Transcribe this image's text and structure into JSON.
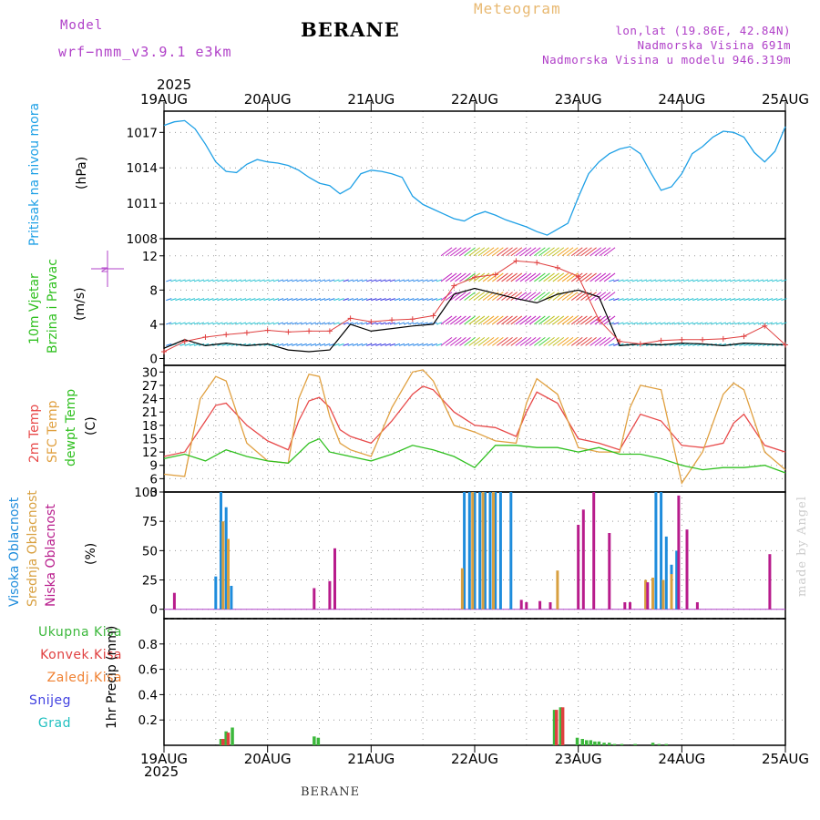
{
  "header": {
    "title": "BERANE",
    "model_label": "Model",
    "model_name": "wrf−nmm_v3.9.1  e3km",
    "meteogram_label": "Meteogram",
    "lonlat": "lon,lat (19.86E, 42.84N)",
    "elevation": "Nadmorska Visina 691m",
    "model_elevation": "Nadmorska Visina u modelu 946.319m",
    "year_top": "2025",
    "year_bottom": "2025",
    "footer_station": "BERANE",
    "credit": "made by Angel"
  },
  "colors": {
    "pressure": "#1ea0e6",
    "wind_mean": "#000000",
    "gust": "#e04040",
    "temp2m": "#e84a4a",
    "sfc_temp": "#e0a040",
    "dewpoint": "#30c020",
    "cloud_high": "#1e8cdc",
    "cloud_mid": "#d8a040",
    "cloud_low": "#b81c8c",
    "precip_total": "#3cb83c",
    "precip_conv": "#e04040",
    "precip_freezing": "#f08030",
    "snow": "#4040e0",
    "graupel": "#20c0c0"
  },
  "chart_data": {
    "type": "meteogram",
    "x_axis": {
      "labels": [
        "19AUG",
        "20AUG",
        "21AUG",
        "22AUG",
        "23AUG",
        "24AUG",
        "25AUG"
      ],
      "range_days": [
        0,
        6
      ]
    },
    "panels": [
      {
        "id": "pressure",
        "type": "line",
        "label": "Pritisak na nivou mora",
        "unit": "(hPa)",
        "ylim": [
          1008,
          1018.8
        ],
        "yticks": [
          1008,
          1011,
          1014,
          1017
        ],
        "series": [
          {
            "name": "Pritisak na nivou mora",
            "color": "#1ea0e6",
            "x": [
              0,
              0.1,
              0.2,
              0.3,
              0.4,
              0.5,
              0.6,
              0.7,
              0.8,
              0.9,
              1,
              1.1,
              1.2,
              1.3,
              1.4,
              1.5,
              1.6,
              1.7,
              1.8,
              1.9,
              2,
              2.1,
              2.2,
              2.3,
              2.4,
              2.5,
              2.6,
              2.7,
              2.8,
              2.9,
              3,
              3.1,
              3.2,
              3.3,
              3.4,
              3.5,
              3.6,
              3.7,
              3.8,
              3.9,
              4,
              4.1,
              4.2,
              4.3,
              4.4,
              4.5,
              4.6,
              4.7,
              4.8,
              4.9,
              5,
              5.1,
              5.2,
              5.3,
              5.4,
              5.5,
              5.6,
              5.7,
              5.8,
              5.9,
              6
            ],
            "values": [
              1017.6,
              1017.9,
              1018,
              1017.3,
              1016,
              1014.5,
              1013.7,
              1013.6,
              1014.3,
              1014.7,
              1014.5,
              1014.4,
              1014.2,
              1013.8,
              1013.2,
              1012.7,
              1012.5,
              1011.8,
              1012.3,
              1013.5,
              1013.8,
              1013.7,
              1013.5,
              1013.2,
              1011.6,
              1010.9,
              1010.5,
              1010.1,
              1009.7,
              1009.5,
              1010,
              1010.3,
              1010,
              1009.6,
              1009.3,
              1009,
              1008.6,
              1008.3,
              1008.8,
              1009.3,
              1011.5,
              1013.5,
              1014.5,
              1015.2,
              1015.6,
              1015.8,
              1015.2,
              1013.6,
              1012.1,
              1012.4,
              1013.5,
              1015.2,
              1015.8,
              1016.6,
              1017.1,
              1017,
              1016.6,
              1015.3,
              1014.5,
              1015.4,
              1017.5
            ]
          }
        ]
      },
      {
        "id": "wind",
        "type": "line+barbs",
        "label": "10m Vjetar",
        "label2": "Brzina i Pravac",
        "unit": "(m/s)",
        "compass": "N",
        "ylim": [
          -0.8,
          14
        ],
        "yticks": [
          0,
          4,
          8,
          12
        ],
        "barb_levels_m_s": [
          1.5,
          4,
          6.8,
          9,
          12
        ],
        "series": [
          {
            "name": "Brzina vjetra",
            "color": "#000000",
            "x": [
              0,
              0.2,
              0.4,
              0.6,
              0.8,
              1,
              1.2,
              1.4,
              1.6,
              1.8,
              2,
              2.2,
              2.4,
              2.6,
              2.8,
              3,
              3.2,
              3.4,
              3.6,
              3.8,
              4,
              4.2,
              4.4,
              4.6,
              4.8,
              5,
              5.2,
              5.4,
              5.6,
              5.8,
              6
            ],
            "values": [
              1.2,
              2.2,
              1.5,
              1.8,
              1.5,
              1.7,
              1,
              0.8,
              1,
              4,
              3.2,
              3.5,
              3.8,
              4,
              7.5,
              8.2,
              7.6,
              7,
              6.5,
              7.5,
              8,
              7.2,
              1.5,
              1.7,
              1.6,
              1.8,
              1.7,
              1.5,
              1.8,
              1.7,
              1.6
            ]
          },
          {
            "name": "Udari vjetra",
            "color": "#e04040",
            "x": [
              0,
              0.2,
              0.4,
              0.6,
              0.8,
              1,
              1.2,
              1.4,
              1.6,
              1.8,
              2,
              2.2,
              2.4,
              2.6,
              2.8,
              3,
              3.2,
              3.4,
              3.6,
              3.8,
              4,
              4.2,
              4.4,
              4.6,
              4.8,
              5,
              5.2,
              5.4,
              5.6,
              5.8,
              6
            ],
            "values": [
              0.8,
              2,
              2.5,
              2.8,
              3,
              3.3,
              3.1,
              3.2,
              3.2,
              4.7,
              4.3,
              4.5,
              4.6,
              5,
              8.5,
              9.5,
              9.8,
              11.4,
              11.2,
              10.6,
              9.6,
              4.5,
              2,
              1.7,
              2.1,
              2.2,
              2.2,
              2.3,
              2.6,
              3.8,
              1.6
            ]
          }
        ]
      },
      {
        "id": "temperature",
        "type": "line",
        "labels": [
          "2m Temp",
          "SFC Temp",
          "dewpt Temp"
        ],
        "unit": "(C)",
        "ylim": [
          3,
          31.5
        ],
        "yticks": [
          3,
          6,
          9,
          12,
          15,
          18,
          21,
          24,
          27,
          30
        ],
        "series": [
          {
            "name": "2m Temp",
            "color": "#e84a4a",
            "x": [
              0,
              0.2,
              0.4,
              0.5,
              0.6,
              0.8,
              1,
              1.2,
              1.3,
              1.4,
              1.5,
              1.6,
              1.7,
              1.8,
              2,
              2.2,
              2.4,
              2.5,
              2.6,
              2.8,
              3,
              3.2,
              3.4,
              3.5,
              3.6,
              3.8,
              4,
              4.2,
              4.4,
              4.5,
              4.6,
              4.8,
              5,
              5.2,
              5.4,
              5.5,
              5.6,
              5.8,
              6
            ],
            "values": [
              11,
              12,
              19,
              22.5,
              23,
              18,
              14.5,
              12.5,
              19,
              23.5,
              24.3,
              22,
              17,
              15.5,
              14,
              19,
              25,
              26.8,
              26,
              21,
              18,
              17.5,
              15.5,
              21,
              25.5,
              23,
              15,
              14,
              12.5,
              16.5,
              20.5,
              19,
              13.5,
              13,
              14,
              18.5,
              20.5,
              13.5,
              12
            ]
          },
          {
            "name": "SFC Temp",
            "color": "#e0a040",
            "x": [
              0,
              0.2,
              0.35,
              0.5,
              0.6,
              0.8,
              1,
              1.2,
              1.3,
              1.4,
              1.5,
              1.6,
              1.7,
              1.8,
              2,
              2.2,
              2.4,
              2.5,
              2.6,
              2.8,
              3,
              3.2,
              3.4,
              3.5,
              3.6,
              3.8,
              4,
              4.2,
              4.4,
              4.5,
              4.6,
              4.8,
              5,
              5.2,
              5.4,
              5.5,
              5.6,
              5.8,
              6
            ],
            "values": [
              7,
              6.5,
              24,
              29,
              28,
              14,
              10,
              9.5,
              24,
              29.5,
              29,
              20,
              14,
              12.5,
              11,
              22,
              30,
              30.5,
              28,
              18,
              16.5,
              14.5,
              14,
              23,
              28.5,
              25,
              13,
              12,
              12,
              22,
              27,
              26,
              5,
              12,
              25,
              27.5,
              26,
              12,
              8
            ]
          },
          {
            "name": "dewpt Temp",
            "color": "#30c020",
            "x": [
              0,
              0.2,
              0.4,
              0.6,
              0.8,
              1,
              1.2,
              1.4,
              1.5,
              1.6,
              1.8,
              2,
              2.2,
              2.4,
              2.6,
              2.8,
              3,
              3.2,
              3.4,
              3.6,
              3.8,
              4,
              4.2,
              4.4,
              4.6,
              4.8,
              5,
              5.2,
              5.4,
              5.6,
              5.8,
              6
            ],
            "values": [
              10.5,
              11.5,
              10,
              12.5,
              11,
              10,
              9.5,
              14,
              15,
              12,
              11,
              10,
              11.5,
              13.5,
              12.5,
              11,
              8.5,
              13.5,
              13.5,
              13,
              13,
              12,
              13,
              11.5,
              11.5,
              10.5,
              9,
              8,
              8.5,
              8.5,
              9,
              7.3
            ]
          }
        ]
      },
      {
        "id": "cloud",
        "type": "bar",
        "labels": [
          "Visoka Oblacnost",
          "Srednja Oblacnost",
          "Niska Oblacnost"
        ],
        "unit": "(%)",
        "ylim": [
          -8,
          100
        ],
        "yticks": [
          0,
          25,
          50,
          75,
          100
        ],
        "series": [
          {
            "name": "Visoka Oblacnost",
            "color": "#1e8cdc",
            "x": [
              0.5,
              0.55,
              0.6,
              0.65,
              2.9,
              2.95,
              3.0,
              3.05,
              3.1,
              3.15,
              3.2,
              3.25,
              3.35,
              4.75,
              4.8,
              4.85,
              4.9,
              4.95
            ],
            "values": [
              28,
              100,
              87,
              20,
              100,
              100,
              100,
              100,
              100,
              100,
              100,
              100,
              100,
              100,
              100,
              62,
              38,
              50
            ]
          },
          {
            "name": "Srednja Oblacnost",
            "color": "#d8a040",
            "x": [
              0.57,
              0.62,
              2.88,
              2.98,
              3.08,
              3.18,
              3.8,
              4.65,
              4.72,
              4.82,
              4.9
            ],
            "values": [
              75,
              60,
              35,
              100,
              100,
              100,
              33,
              25,
              27,
              25,
              30
            ]
          },
          {
            "name": "Niska Oblacnost",
            "color": "#b81c8c",
            "x": [
              0.1,
              1.45,
              1.6,
              1.65,
              3.45,
              3.5,
              3.63,
              3.73,
              4,
              4.05,
              4.15,
              4.3,
              4.45,
              4.5,
              4.67,
              4.97,
              5.05,
              5.15,
              5.85
            ],
            "values": [
              14,
              18,
              24,
              52,
              8,
              6,
              7,
              6,
              72,
              85,
              100,
              65,
              6,
              6,
              23,
              97,
              68,
              6,
              47
            ]
          }
        ]
      },
      {
        "id": "precip",
        "type": "bar",
        "labels": [
          "Ukupna Kisa",
          "Konvek.Kisa",
          "Zaledj.Kisa",
          "Snijeg",
          "Grad"
        ],
        "unit_label": "1hr Precip (mm)",
        "ylim": [
          0,
          1.0
        ],
        "yticks": [
          0.2,
          0.4,
          0.6,
          0.8
        ],
        "series": [
          {
            "name": "Ukupna Kisa",
            "color": "#3cb83c",
            "x": [
              0.55,
              0.6,
              0.66,
              1.45,
              1.49,
              3.77,
              3.83,
              3.99,
              4.04,
              4.08,
              4.12,
              4.16,
              4.2,
              4.25,
              4.3,
              4.35,
              4.42,
              4.55,
              4.72,
              4.78,
              4.85
            ],
            "values": [
              0.05,
              0.11,
              0.14,
              0.07,
              0.06,
              0.28,
              0.3,
              0.06,
              0.05,
              0.04,
              0.04,
              0.03,
              0.03,
              0.02,
              0.02,
              0.01,
              0.01,
              0.01,
              0.02,
              0.01,
              0.01
            ]
          },
          {
            "name": "Konvek.Kisa",
            "color": "#e04040",
            "x": [
              0.57,
              0.62,
              3.79,
              3.85
            ],
            "values": [
              0.05,
              0.1,
              0.28,
              0.3
            ]
          }
        ]
      }
    ]
  }
}
